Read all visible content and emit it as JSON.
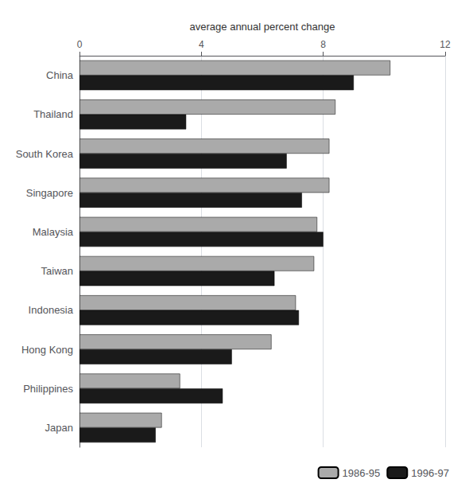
{
  "chart_data": {
    "type": "bar",
    "orientation": "horizontal",
    "xlabel": "average annual percent change",
    "categories": [
      "China",
      "Thailand",
      "South Korea",
      "Singapore",
      "Malaysia",
      "Taiwan",
      "Indonesia",
      "Hong Kong",
      "Philippines",
      "Japan"
    ],
    "series": [
      {
        "name": "1986-95",
        "color": "#aaaaaa",
        "values": [
          10.2,
          8.4,
          8.2,
          8.2,
          7.8,
          7.7,
          7.1,
          6.3,
          3.3,
          2.7
        ]
      },
      {
        "name": "1996-97",
        "color": "#1a1a1a",
        "values": [
          9.0,
          3.5,
          6.8,
          7.3,
          8.0,
          6.4,
          7.2,
          5.0,
          4.7,
          2.5
        ]
      }
    ],
    "xlim": [
      0,
      12
    ],
    "xticks": [
      0,
      4,
      8,
      12
    ],
    "grid": true,
    "legend": "lower right"
  }
}
